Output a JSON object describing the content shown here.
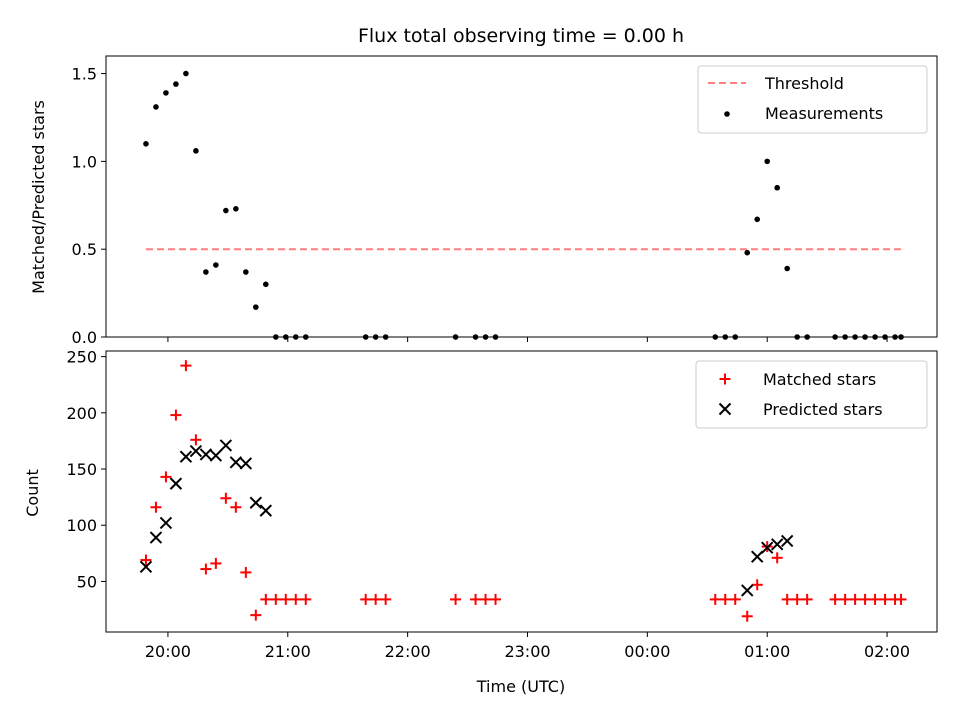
{
  "chart_data": {
    "type": "scatter",
    "title": "Flux total observing time = 0.00 h",
    "xlabel": "Time (UTC)",
    "x_tick_labels": [
      "20:00",
      "21:00",
      "22:00",
      "23:00",
      "00:00",
      "01:00",
      "02:00"
    ],
    "x_tick_values": [
      0,
      60,
      120,
      180,
      240,
      300,
      360
    ],
    "x_range": [
      -31,
      385
    ],
    "top": {
      "ylabel": "Matched/Predicted stars",
      "ylim": [
        0,
        1.6
      ],
      "y_ticks": [
        0,
        0.5,
        1.0,
        1.5
      ],
      "y_tick_labels": [
        "0.0",
        "0.5",
        "1.0",
        "1.5"
      ],
      "legend_position": "upper right",
      "threshold": {
        "name": "Threshold",
        "value": 0.5,
        "x_start": -11,
        "x_end": 367,
        "color": "#ff7f7f"
      },
      "measurements": {
        "name": "Measurements",
        "color": "#000000",
        "x": [
          -11,
          -6,
          -1,
          4,
          9,
          14,
          19,
          24,
          29,
          34,
          39,
          44,
          49,
          54,
          59,
          64,
          69,
          99,
          104,
          109,
          144,
          154,
          159,
          164,
          274,
          279,
          284,
          290,
          295,
          300,
          305,
          310,
          315,
          320,
          334,
          339,
          344,
          349,
          354,
          359,
          364,
          367
        ],
        "y": [
          1.1,
          1.31,
          1.39,
          1.44,
          1.5,
          1.06,
          0.37,
          0.41,
          0.72,
          0.73,
          0.37,
          0.17,
          0.3,
          0,
          0,
          0,
          0,
          0,
          0,
          0,
          0,
          0,
          0,
          0,
          0,
          0,
          0,
          0.48,
          0.67,
          1.0,
          0.85,
          0.39,
          0,
          0,
          0,
          0,
          0,
          0,
          0,
          0,
          0,
          0
        ]
      }
    },
    "bottom": {
      "ylabel": "Count",
      "ylim": [
        5,
        255
      ],
      "y_ticks": [
        50,
        100,
        150,
        200,
        250
      ],
      "y_tick_labels": [
        "50",
        "100",
        "150",
        "200",
        "250"
      ],
      "legend_position": "upper right",
      "series": [
        {
          "name": "Matched stars",
          "marker": "plus",
          "color": "#ff0000",
          "x": [
            -11,
            -6,
            -1,
            4,
            9,
            14,
            19,
            24,
            29,
            34,
            39,
            44,
            49,
            54,
            59,
            64,
            69,
            99,
            104,
            109,
            144,
            154,
            159,
            164,
            274,
            279,
            284,
            290,
            295,
            300,
            305,
            310,
            315,
            320,
            334,
            339,
            344,
            349,
            354,
            359,
            364,
            367
          ],
          "y": [
            69,
            116,
            143,
            198,
            242,
            176,
            61,
            66,
            124,
            116,
            58,
            20,
            34,
            34,
            34,
            34,
            34,
            34,
            34,
            34,
            34,
            34,
            34,
            34,
            34,
            34,
            34,
            19,
            47,
            81,
            71,
            34,
            34,
            34,
            34,
            34,
            34,
            34,
            34,
            34,
            34,
            34
          ]
        },
        {
          "name": "Predicted stars",
          "marker": "x",
          "color": "#000000",
          "x": [
            -11,
            -6,
            -1,
            4,
            9,
            14,
            19,
            24,
            29,
            34,
            39,
            44,
            49,
            290,
            295,
            300,
            305,
            310
          ],
          "y": [
            63,
            89,
            102,
            137,
            161,
            166,
            163,
            162,
            171,
            156,
            155,
            120,
            113,
            42,
            72,
            80,
            83,
            86
          ]
        }
      ]
    }
  }
}
